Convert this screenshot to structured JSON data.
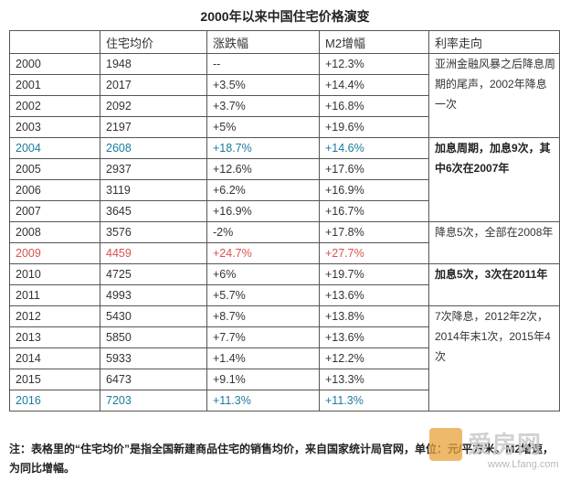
{
  "title": "2000年以来中国住宅价格演变",
  "headers": [
    "",
    "住宅均价",
    "涨跌幅",
    "M2增幅",
    "利率走向"
  ],
  "rows": [
    {
      "year": "2000",
      "price": "1948",
      "change": "--",
      "m2": "+12.3%"
    },
    {
      "year": "2001",
      "price": "2017",
      "change": "+3.5%",
      "m2": "+14.4%"
    },
    {
      "year": "2002",
      "price": "2092",
      "change": "+3.7%",
      "m2": "+16.8%"
    },
    {
      "year": "2003",
      "price": "2197",
      "change": "+5%",
      "m2": "+19.6%"
    },
    {
      "year": "2004",
      "price": "2608",
      "change": "+18.7%",
      "m2": "+14.6%"
    },
    {
      "year": "2005",
      "price": "2937",
      "change": "+12.6%",
      "m2": "+17.6%"
    },
    {
      "year": "2006",
      "price": "3119",
      "change": "+6.2%",
      "m2": "+16.9%"
    },
    {
      "year": "2007",
      "price": "3645",
      "change": "+16.9%",
      "m2": "+16.7%"
    },
    {
      "year": "2008",
      "price": "3576",
      "change": "-2%",
      "m2": "+17.8%"
    },
    {
      "year": "2009",
      "price": "4459",
      "change": "+24.7%",
      "m2": "+27.7%"
    },
    {
      "year": "2010",
      "price": "4725",
      "change": "+6%",
      "m2": "+19.7%"
    },
    {
      "year": "2011",
      "price": "4993",
      "change": "+5.7%",
      "m2": "+13.6%"
    },
    {
      "year": "2012",
      "price": "5430",
      "change": "+8.7%",
      "m2": "+13.8%"
    },
    {
      "year": "2013",
      "price": "5850",
      "change": "+7.7%",
      "m2": "+13.6%"
    },
    {
      "year": "2014",
      "price": "5933",
      "change": "+1.4%",
      "m2": "+12.2%"
    },
    {
      "year": "2015",
      "price": "6473",
      "change": "+9.1%",
      "m2": "+13.3%"
    },
    {
      "year": "2016",
      "price": "7203",
      "change": "+11.3%",
      "m2": "+11.3%"
    }
  ],
  "rate_notes": [
    "亚洲金融风暴之后降息周期的尾声，2002年降息一次",
    "加息周期，加息9次，其中6次在2007年",
    "降息5次，全部在2008年",
    "加息5次，3次在2011年",
    "7次降息，2012年2次，2014年末1次，2015年4次"
  ],
  "highlight_colors": {
    "blue": "#1a7a9e",
    "red": "#d9534f"
  },
  "footnote": "注：表格里的“住宅均价”是指全国新建商品住宅的销售均价，来自国家统计局官网，单位：元/平方米。M2增速，为同比增幅。",
  "watermark": {
    "brand": "爱房网",
    "url": "www.Lfang.com"
  }
}
